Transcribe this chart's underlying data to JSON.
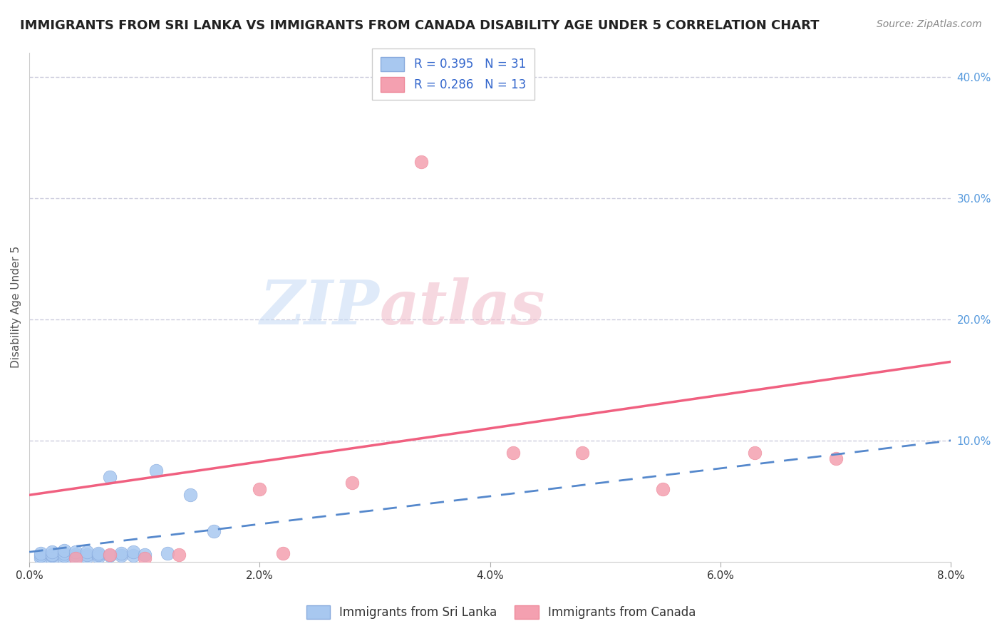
{
  "title": "IMMIGRANTS FROM SRI LANKA VS IMMIGRANTS FROM CANADA DISABILITY AGE UNDER 5 CORRELATION CHART",
  "source": "Source: ZipAtlas.com",
  "ylabel": "Disability Age Under 5",
  "xlim": [
    0.0,
    0.08
  ],
  "ylim": [
    0.0,
    0.42
  ],
  "xtick_labels": [
    "0.0%",
    "2.0%",
    "4.0%",
    "6.0%",
    "8.0%"
  ],
  "xtick_vals": [
    0.0,
    0.02,
    0.04,
    0.06,
    0.08
  ],
  "ytick_labels": [
    "10.0%",
    "20.0%",
    "30.0%",
    "40.0%"
  ],
  "ytick_vals": [
    0.1,
    0.2,
    0.3,
    0.4
  ],
  "sri_lanka_color": "#a8c8f0",
  "canada_color": "#f4a0b0",
  "sri_lanka_line_color": "#5588cc",
  "canada_line_color": "#f06080",
  "legend_label_sri_lanka": "Immigrants from Sri Lanka",
  "legend_label_canada": "Immigrants from Canada",
  "watermark_zip": "ZIP",
  "watermark_atlas": "atlas",
  "background_color": "#ffffff",
  "grid_color": "#ccccdd",
  "title_fontsize": 13,
  "axis_label_fontsize": 11,
  "sri_lanka_x": [
    0.001,
    0.001,
    0.001,
    0.002,
    0.002,
    0.002,
    0.002,
    0.003,
    0.003,
    0.003,
    0.003,
    0.004,
    0.004,
    0.004,
    0.005,
    0.005,
    0.005,
    0.006,
    0.006,
    0.006,
    0.007,
    0.007,
    0.008,
    0.008,
    0.009,
    0.009,
    0.01,
    0.011,
    0.012,
    0.014,
    0.016
  ],
  "sri_lanka_y": [
    0.003,
    0.005,
    0.007,
    0.003,
    0.005,
    0.006,
    0.008,
    0.003,
    0.005,
    0.007,
    0.009,
    0.004,
    0.006,
    0.008,
    0.004,
    0.006,
    0.008,
    0.004,
    0.006,
    0.007,
    0.005,
    0.07,
    0.005,
    0.007,
    0.005,
    0.008,
    0.006,
    0.075,
    0.007,
    0.055,
    0.025
  ],
  "canada_x": [
    0.004,
    0.007,
    0.01,
    0.013,
    0.02,
    0.022,
    0.028,
    0.034,
    0.042,
    0.048,
    0.055,
    0.063,
    0.07
  ],
  "canada_y": [
    0.003,
    0.006,
    0.003,
    0.006,
    0.06,
    0.007,
    0.065,
    0.33,
    0.09,
    0.09,
    0.06,
    0.09,
    0.085
  ],
  "canada_line_x0": 0.0,
  "canada_line_y0": 0.055,
  "canada_line_x1": 0.08,
  "canada_line_y1": 0.165,
  "sri_line_x0": 0.0,
  "sri_line_y0": 0.008,
  "sri_line_x1": 0.08,
  "sri_line_y1": 0.1
}
